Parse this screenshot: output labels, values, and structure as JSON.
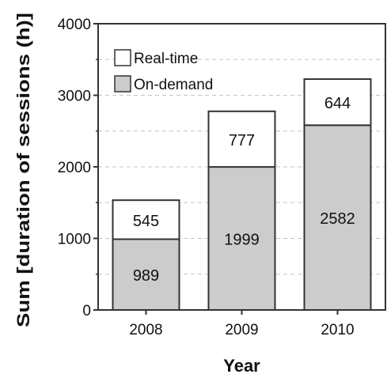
{
  "chart_data": {
    "type": "bar",
    "stacked": true,
    "categories": [
      "2008",
      "2009",
      "2010"
    ],
    "series": [
      {
        "name": "On-demand",
        "values": [
          989,
          1999,
          2582
        ],
        "color": "#cccccc"
      },
      {
        "name": "Real-time",
        "values": [
          545,
          777,
          644
        ],
        "color": "#ffffff"
      }
    ],
    "bar_labels": {
      "On-demand": [
        "989",
        "1999",
        "2582"
      ],
      "Real-time": [
        "545",
        "777",
        "644"
      ]
    },
    "xlabel": "Year",
    "ylabel": "Sum [duration of sessions (h)]",
    "ylim": [
      0,
      4000
    ],
    "yticks": [
      0,
      1000,
      2000,
      3000,
      4000
    ],
    "ytick_labels": [
      "0",
      "1000",
      "2000",
      "3000",
      "4000"
    ],
    "grid": {
      "major": true,
      "minor": true,
      "style": "dashed"
    },
    "legend": {
      "placement": "top-left",
      "entries": [
        {
          "label": "Real-time",
          "color": "#ffffff"
        },
        {
          "label": "On-demand",
          "color": "#cccccc"
        }
      ]
    }
  }
}
